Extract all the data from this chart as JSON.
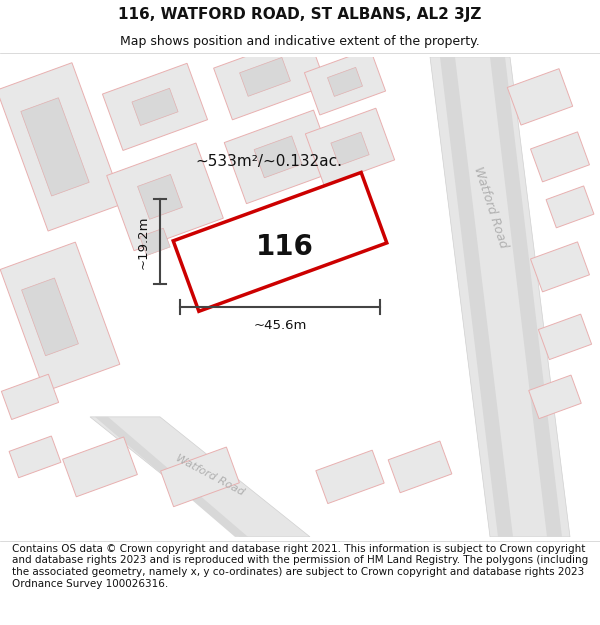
{
  "title": "116, WATFORD ROAD, ST ALBANS, AL2 3JZ",
  "subtitle": "Map shows position and indicative extent of the property.",
  "footer": "Contains OS data © Crown copyright and database right 2021. This information is subject to Crown copyright and database rights 2023 and is reproduced with the permission of HM Land Registry. The polygons (including the associated geometry, namely x, y co-ordinates) are subject to Crown copyright and database rights 2023 Ordnance Survey 100026316.",
  "area_label": "~533m²/~0.132ac.",
  "property_number": "116",
  "width_label": "~45.6m",
  "height_label": "~19.2m",
  "map_bg": "#ffffff",
  "road_fill": "#e8e8e8",
  "road_edge": "#d0d0d0",
  "building_fill": "#e8e8e8",
  "building_edge": "#e8b0b0",
  "inner_fill": "#d8d8d8",
  "inner_edge": "#e0b0b0",
  "plot_outline_color": "#cc0000",
  "road_label_color": "#b0b0b0",
  "dim_line_color": "#444444",
  "text_color": "#111111",
  "figsize": [
    6.0,
    6.25
  ],
  "dpi": 100,
  "title_fontsize": 11,
  "subtitle_fontsize": 9,
  "footer_fontsize": 7.5
}
